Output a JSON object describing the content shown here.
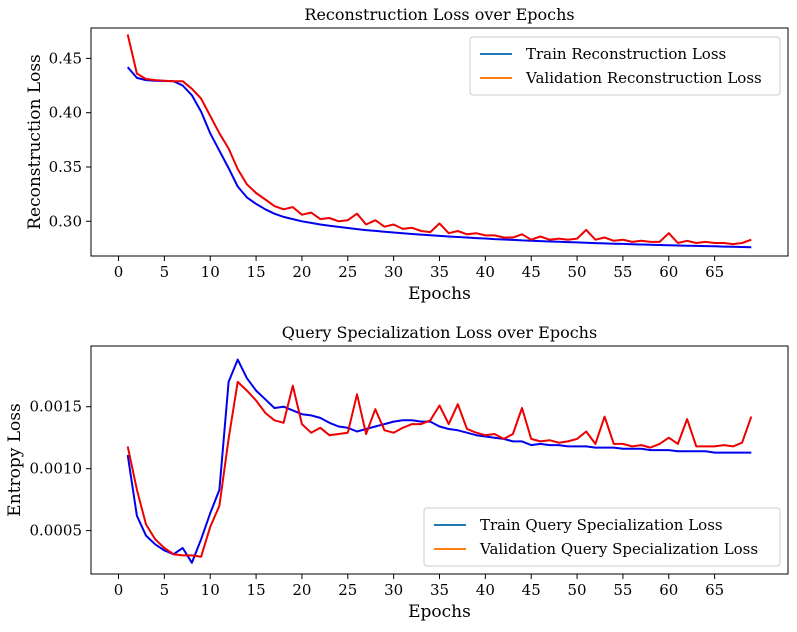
{
  "chart_data": [
    {
      "type": "line",
      "title": "Reconstruction Loss over Epochs",
      "xlabel": "Epochs",
      "ylabel": "Reconstruction Loss",
      "xlim": [
        -3,
        73
      ],
      "ylim": [
        0.268,
        0.478
      ],
      "xticks": [
        0,
        5,
        10,
        15,
        20,
        25,
        30,
        35,
        40,
        45,
        50,
        55,
        60,
        65
      ],
      "yticks": [
        0.3,
        0.35,
        0.4,
        0.45
      ],
      "ytick_labels": [
        "0.30",
        "0.35",
        "0.40",
        "0.45"
      ],
      "legend_position": "upper-right",
      "series": [
        {
          "name": "Train Reconstruction Loss",
          "legend_color": "#1f77b4",
          "line_color": "#0000ee",
          "x": [
            1,
            2,
            3,
            4,
            5,
            6,
            7,
            8,
            9,
            10,
            11,
            12,
            13,
            14,
            15,
            16,
            17,
            18,
            19,
            20,
            21,
            22,
            23,
            24,
            25,
            26,
            27,
            28,
            29,
            30,
            31,
            32,
            33,
            34,
            35,
            36,
            37,
            38,
            39,
            40,
            41,
            42,
            43,
            44,
            45,
            46,
            47,
            48,
            49,
            50,
            51,
            52,
            53,
            54,
            55,
            56,
            57,
            58,
            59,
            60,
            61,
            62,
            63,
            64,
            65,
            66,
            67,
            68,
            69
          ],
          "values": [
            0.442,
            0.432,
            0.43,
            0.4295,
            0.4292,
            0.429,
            0.425,
            0.416,
            0.401,
            0.381,
            0.365,
            0.349,
            0.332,
            0.322,
            0.316,
            0.311,
            0.307,
            0.304,
            0.302,
            0.3,
            0.2985,
            0.297,
            0.2958,
            0.2948,
            0.2938,
            0.2928,
            0.2919,
            0.2911,
            0.2903,
            0.2896,
            0.2889,
            0.2883,
            0.2877,
            0.2871,
            0.2865,
            0.286,
            0.2855,
            0.285,
            0.2845,
            0.2841,
            0.2836,
            0.2832,
            0.2828,
            0.2824,
            0.2821,
            0.2817,
            0.2814,
            0.2811,
            0.2808,
            0.2805,
            0.2802,
            0.2799,
            0.2796,
            0.2793,
            0.2791,
            0.2788,
            0.2786,
            0.2783,
            0.2781,
            0.2779,
            0.2777,
            0.2775,
            0.2773,
            0.2771,
            0.2769,
            0.2767,
            0.2765,
            0.2763,
            0.2761
          ]
        },
        {
          "name": "Validation Reconstruction Loss",
          "legend_color": "#ff7f0e",
          "line_color": "#ee0000",
          "x": [
            1,
            2,
            3,
            4,
            5,
            6,
            7,
            8,
            9,
            10,
            11,
            12,
            13,
            14,
            15,
            16,
            17,
            18,
            19,
            20,
            21,
            22,
            23,
            24,
            25,
            26,
            27,
            28,
            29,
            30,
            31,
            32,
            33,
            34,
            35,
            36,
            37,
            38,
            39,
            40,
            41,
            42,
            43,
            44,
            45,
            46,
            47,
            48,
            49,
            50,
            51,
            52,
            53,
            54,
            55,
            56,
            57,
            58,
            59,
            60,
            61,
            62,
            63,
            64,
            65,
            66,
            67,
            68,
            69
          ],
          "values": [
            0.472,
            0.436,
            0.431,
            0.43,
            0.4295,
            0.429,
            0.429,
            0.422,
            0.413,
            0.397,
            0.381,
            0.367,
            0.348,
            0.334,
            0.326,
            0.32,
            0.314,
            0.311,
            0.313,
            0.306,
            0.308,
            0.302,
            0.303,
            0.3,
            0.301,
            0.307,
            0.297,
            0.301,
            0.295,
            0.297,
            0.293,
            0.294,
            0.291,
            0.29,
            0.298,
            0.289,
            0.291,
            0.288,
            0.289,
            0.287,
            0.287,
            0.285,
            0.285,
            0.288,
            0.283,
            0.286,
            0.283,
            0.284,
            0.283,
            0.284,
            0.292,
            0.283,
            0.285,
            0.282,
            0.283,
            0.281,
            0.282,
            0.281,
            0.281,
            0.289,
            0.28,
            0.282,
            0.28,
            0.281,
            0.28,
            0.28,
            0.279,
            0.28,
            0.283
          ]
        }
      ]
    },
    {
      "type": "line",
      "title": "Query Specialization Loss over Epochs",
      "xlabel": "Epochs",
      "ylabel": "Entropy Loss",
      "xlim": [
        -3,
        73
      ],
      "ylim": [
        0.00015,
        0.00199
      ],
      "xticks": [
        0,
        5,
        10,
        15,
        20,
        25,
        30,
        35,
        40,
        45,
        50,
        55,
        60,
        65
      ],
      "yticks": [
        0.0005,
        0.001,
        0.0015
      ],
      "ytick_labels": [
        "0.0005",
        "0.0010",
        "0.0015"
      ],
      "legend_position": "lower-right",
      "series": [
        {
          "name": "Train Query Specialization Loss",
          "legend_color": "#1f77b4",
          "line_color": "#0000ee",
          "x": [
            1,
            2,
            3,
            4,
            5,
            6,
            7,
            8,
            9,
            10,
            11,
            12,
            13,
            14,
            15,
            16,
            17,
            18,
            19,
            20,
            21,
            22,
            23,
            24,
            25,
            26,
            27,
            28,
            29,
            30,
            31,
            32,
            33,
            34,
            35,
            36,
            37,
            38,
            39,
            40,
            41,
            42,
            43,
            44,
            45,
            46,
            47,
            48,
            49,
            50,
            51,
            52,
            53,
            54,
            55,
            56,
            57,
            58,
            59,
            60,
            61,
            62,
            63,
            64,
            65,
            66,
            67,
            68,
            69
          ],
          "values": [
            0.00111,
            0.00062,
            0.00046,
            0.00039,
            0.00034,
            0.00031,
            0.00036,
            0.00024,
            0.00043,
            0.00064,
            0.00083,
            0.0017,
            0.00188,
            0.00173,
            0.00163,
            0.00156,
            0.00149,
            0.0015,
            0.00147,
            0.00144,
            0.00143,
            0.00141,
            0.00137,
            0.00134,
            0.00133,
            0.0013,
            0.00132,
            0.00134,
            0.00136,
            0.00138,
            0.00139,
            0.00139,
            0.00138,
            0.00138,
            0.00134,
            0.00132,
            0.00131,
            0.00129,
            0.00127,
            0.00126,
            0.00125,
            0.00124,
            0.00122,
            0.00122,
            0.00119,
            0.0012,
            0.00119,
            0.00119,
            0.00118,
            0.00118,
            0.00118,
            0.00117,
            0.00117,
            0.00117,
            0.00116,
            0.00116,
            0.00116,
            0.00115,
            0.00115,
            0.00115,
            0.00114,
            0.00114,
            0.00114,
            0.00114,
            0.00113,
            0.00113,
            0.00113,
            0.00113,
            0.00113
          ]
        },
        {
          "name": "Validation Query Specialization Loss",
          "legend_color": "#ff7f0e",
          "line_color": "#ee0000",
          "x": [
            1,
            2,
            3,
            4,
            5,
            6,
            7,
            8,
            9,
            10,
            11,
            12,
            13,
            14,
            15,
            16,
            17,
            18,
            19,
            20,
            21,
            22,
            23,
            24,
            25,
            26,
            27,
            28,
            29,
            30,
            31,
            32,
            33,
            34,
            35,
            36,
            37,
            38,
            39,
            40,
            41,
            42,
            43,
            44,
            45,
            46,
            47,
            48,
            49,
            50,
            51,
            52,
            53,
            54,
            55,
            56,
            57,
            58,
            59,
            60,
            61,
            62,
            63,
            64,
            65,
            66,
            67,
            68,
            69
          ],
          "values": [
            0.00118,
            0.00083,
            0.00055,
            0.00043,
            0.00036,
            0.00031,
            0.0003,
            0.0003,
            0.00029,
            0.00053,
            0.0007,
            0.00124,
            0.0017,
            0.00163,
            0.00155,
            0.00145,
            0.00139,
            0.00137,
            0.00167,
            0.00136,
            0.00129,
            0.00133,
            0.00127,
            0.00128,
            0.00129,
            0.0016,
            0.00128,
            0.00148,
            0.00131,
            0.00129,
            0.00133,
            0.00136,
            0.00136,
            0.00139,
            0.00151,
            0.00136,
            0.00152,
            0.00132,
            0.00129,
            0.00127,
            0.00128,
            0.00124,
            0.00128,
            0.00149,
            0.00124,
            0.00122,
            0.00123,
            0.00121,
            0.00122,
            0.00124,
            0.0013,
            0.0012,
            0.00142,
            0.0012,
            0.0012,
            0.00118,
            0.00119,
            0.00117,
            0.0012,
            0.00125,
            0.0012,
            0.0014,
            0.00118,
            0.00118,
            0.00118,
            0.00119,
            0.00118,
            0.00121,
            0.00142
          ]
        }
      ]
    }
  ]
}
